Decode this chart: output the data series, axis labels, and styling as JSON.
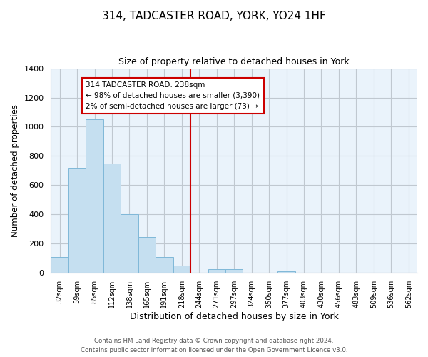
{
  "title": "314, TADCASTER ROAD, YORK, YO24 1HF",
  "subtitle": "Size of property relative to detached houses in York",
  "xlabel": "Distribution of detached houses by size in York",
  "ylabel": "Number of detached properties",
  "bin_labels": [
    "32sqm",
    "59sqm",
    "85sqm",
    "112sqm",
    "138sqm",
    "165sqm",
    "191sqm",
    "218sqm",
    "244sqm",
    "271sqm",
    "297sqm",
    "324sqm",
    "350sqm",
    "377sqm",
    "403sqm",
    "430sqm",
    "456sqm",
    "483sqm",
    "509sqm",
    "536sqm",
    "562sqm"
  ],
  "bar_heights": [
    107,
    720,
    1050,
    750,
    400,
    245,
    110,
    50,
    0,
    28,
    25,
    0,
    0,
    10,
    0,
    0,
    0,
    0,
    0,
    0,
    0
  ],
  "bar_color": "#c5dff0",
  "bar_edge_color": "#7fb8d8",
  "plot_bg_color": "#eaf3fb",
  "vline_x_index": 8,
  "vline_color": "#cc0000",
  "annotation_text": "314 TADCASTER ROAD: 238sqm\n← 98% of detached houses are smaller (3,390)\n2% of semi-detached houses are larger (73) →",
  "annotation_box_color": "#ffffff",
  "annotation_border_color": "#cc0000",
  "ylim": [
    0,
    1400
  ],
  "yticks": [
    0,
    200,
    400,
    600,
    800,
    1000,
    1200,
    1400
  ],
  "footer_line1": "Contains HM Land Registry data © Crown copyright and database right 2024.",
  "footer_line2": "Contains public sector information licensed under the Open Government Licence v3.0.",
  "background_color": "#ffffff",
  "grid_color": "#c0c8d0"
}
